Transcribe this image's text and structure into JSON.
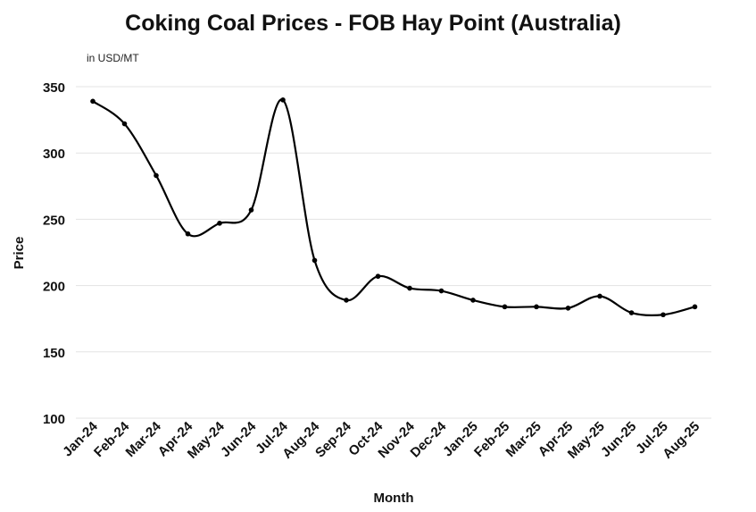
{
  "chart_data": {
    "type": "line",
    "title": "Coking Coal Prices - FOB Hay Point (Australia)",
    "subtitle": "in USD/MT",
    "xlabel": "Month",
    "ylabel": "Price",
    "ylim": [
      100,
      350
    ],
    "yticks": [
      100,
      150,
      200,
      250,
      300,
      350
    ],
    "grid": true,
    "line_color": "#000000",
    "categories": [
      "Jan-24",
      "Feb-24",
      "Mar-24",
      "Apr-24",
      "May-24",
      "Jun-24",
      "Jul-24",
      "Aug-24",
      "Sep-24",
      "Oct-24",
      "Nov-24",
      "Dec-24",
      "Jan-25",
      "Feb-25",
      "Mar-25",
      "Apr-25",
      "May-25",
      "Jun-25",
      "Jul-25",
      "Aug-25"
    ],
    "values": [
      339,
      322,
      283,
      239,
      247,
      257,
      340,
      219,
      189,
      207,
      198,
      196,
      189,
      184,
      184,
      183,
      192,
      179.5,
      178,
      184
    ]
  }
}
